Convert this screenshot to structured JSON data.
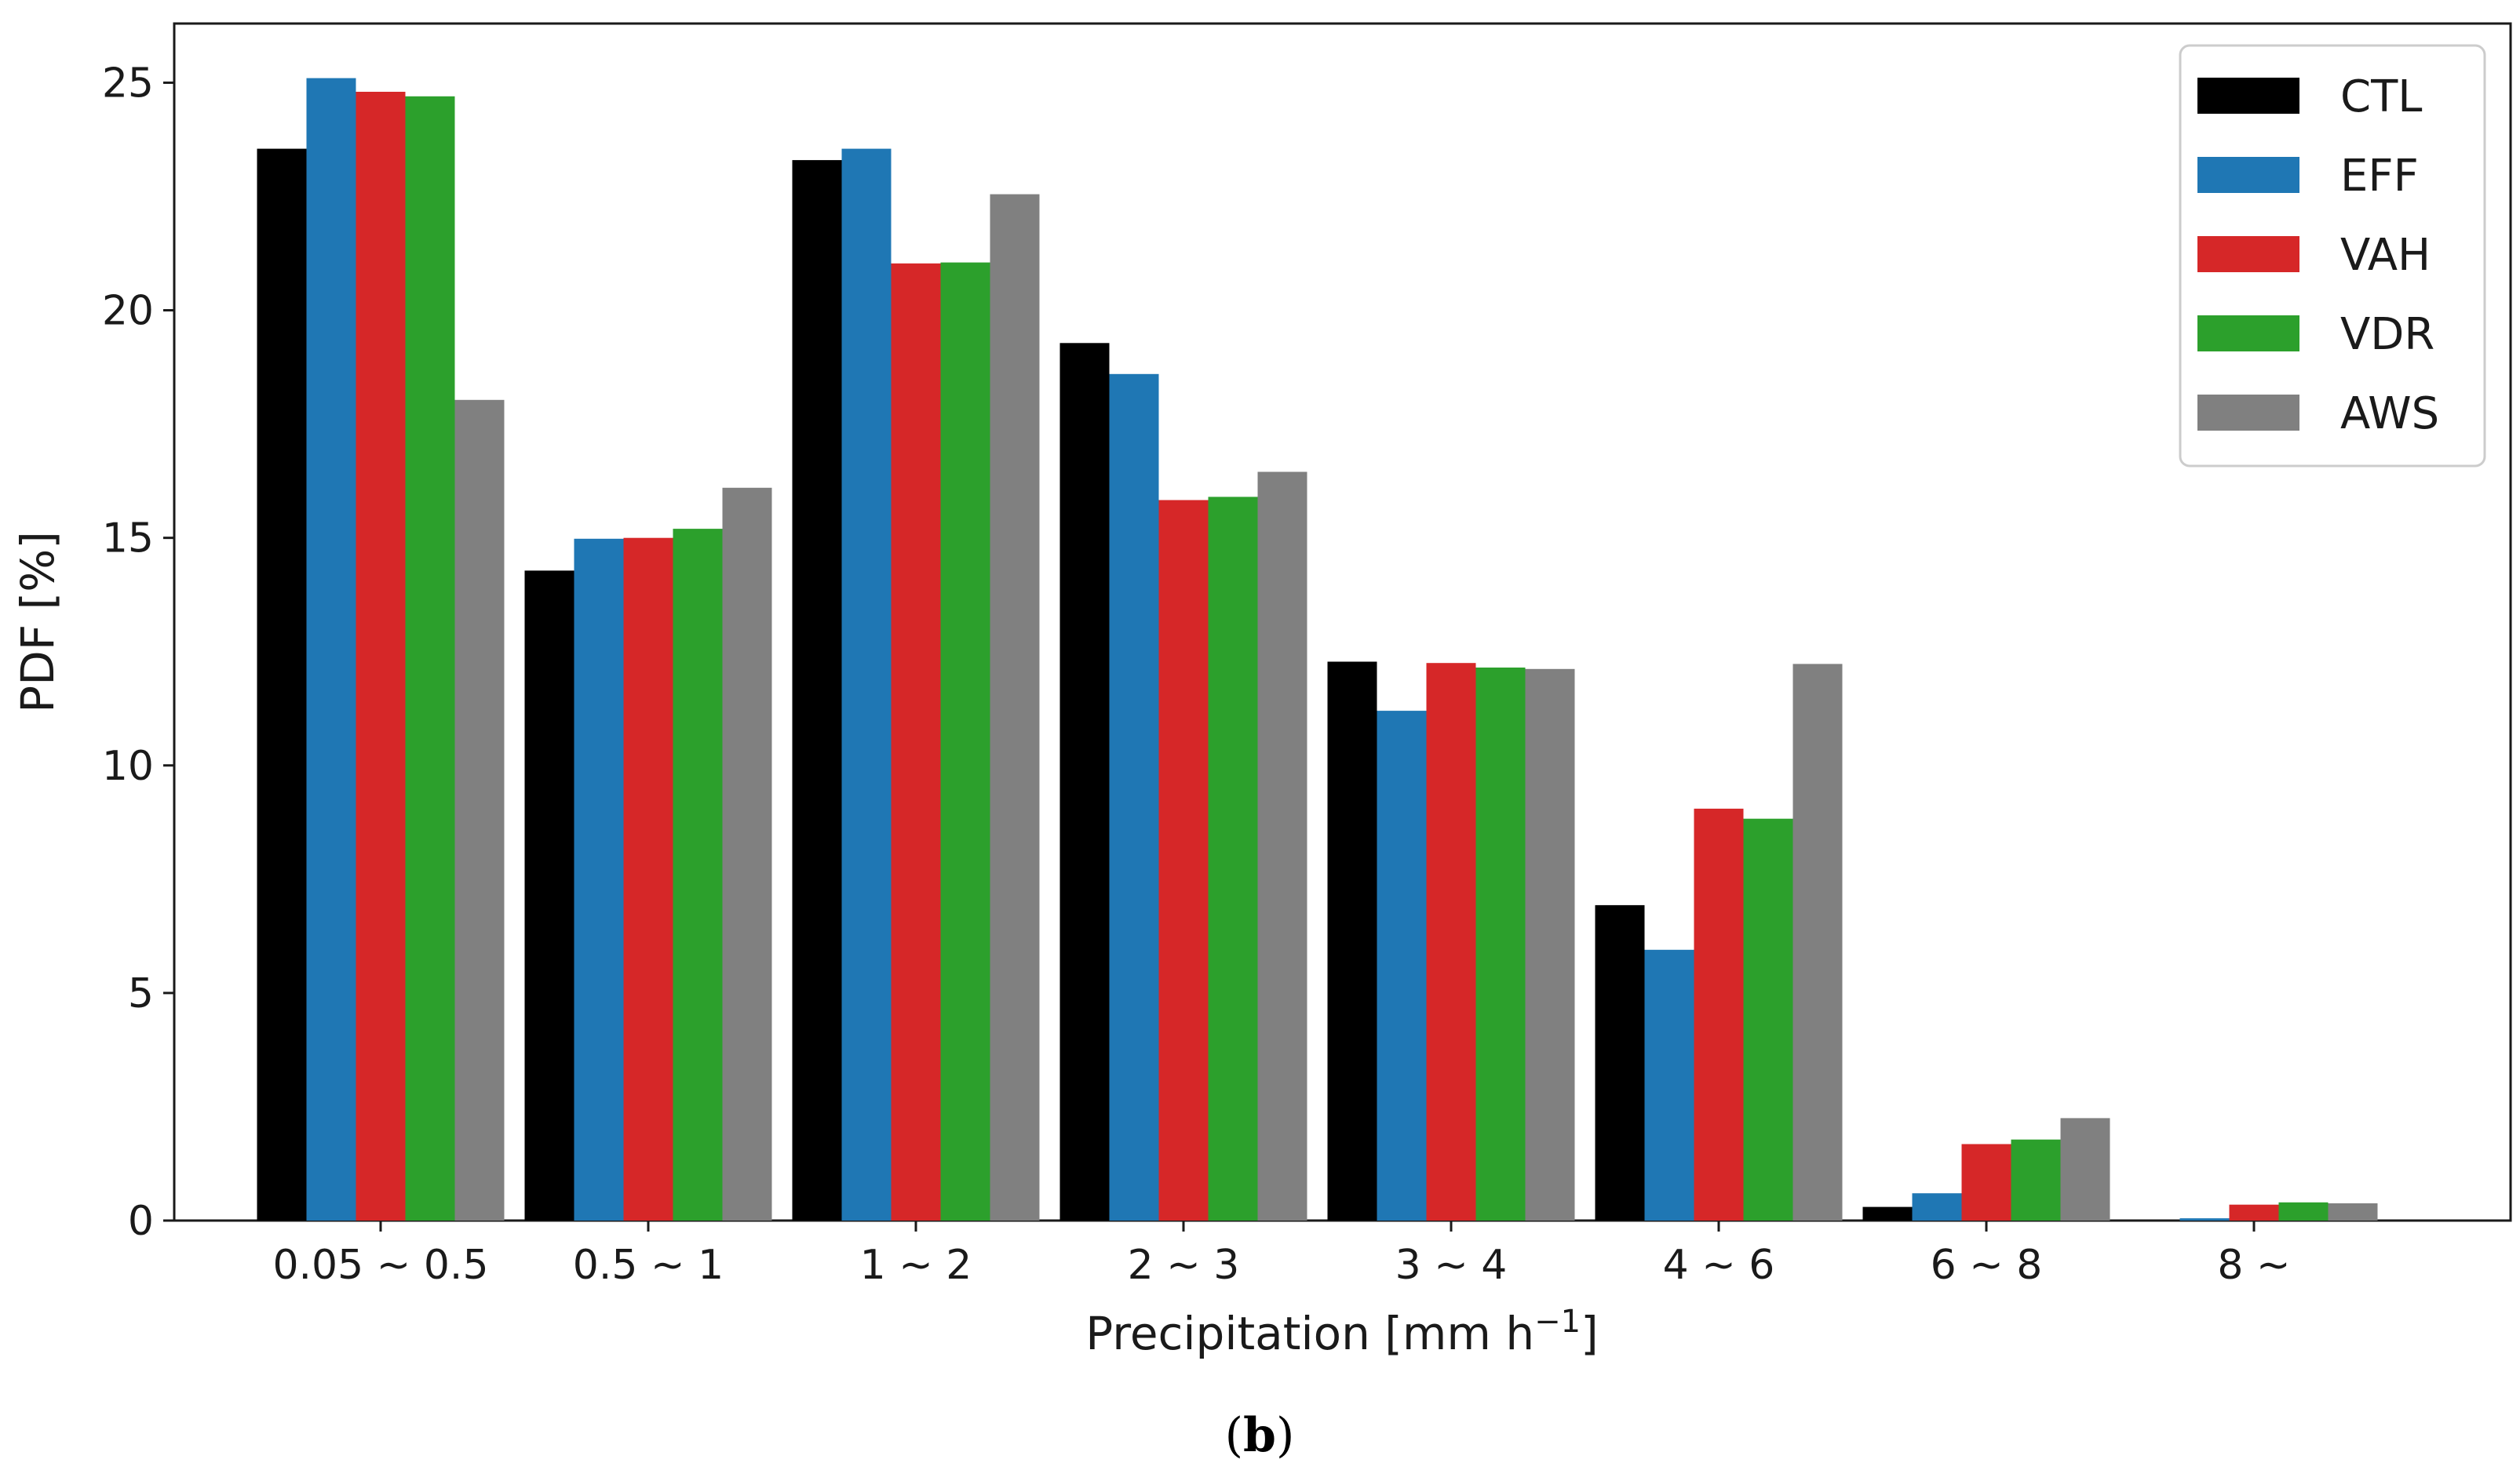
{
  "chart_data": {
    "type": "bar",
    "xlabel": "Precipitation [mm h",
    "xlabel_superscript": "−1",
    "xlabel_suffix": "]",
    "ylabel": "PDF [%]",
    "ylim": [
      0,
      26.3
    ],
    "yticks": [
      0,
      5,
      10,
      15,
      20,
      25
    ],
    "grid": false,
    "legend_position": "top-right",
    "categories": [
      "0.05 ~ 0.5",
      "0.5 ~ 1",
      "1 ~ 2",
      "2 ~ 3",
      "3 ~ 4",
      "4 ~ 6",
      "6 ~ 8",
      "8 ~"
    ],
    "series": [
      {
        "name": "CTL",
        "color": "#000000",
        "values": [
          23.55,
          14.28,
          23.3,
          19.28,
          12.28,
          6.93,
          0.3,
          0.0
        ]
      },
      {
        "name": "EFF",
        "color": "#1f77b4",
        "values": [
          25.1,
          14.98,
          23.55,
          18.6,
          11.2,
          5.95,
          0.6,
          0.05
        ]
      },
      {
        "name": "VAH",
        "color": "#d62728",
        "values": [
          24.8,
          15.0,
          21.03,
          15.83,
          12.25,
          9.05,
          1.68,
          0.35
        ]
      },
      {
        "name": "VDR",
        "color": "#2ca02c",
        "values": [
          24.7,
          15.2,
          21.05,
          15.9,
          12.15,
          8.83,
          1.78,
          0.4
        ]
      },
      {
        "name": "AWS",
        "color": "#808080",
        "values": [
          18.03,
          16.1,
          22.55,
          16.45,
          12.12,
          12.23,
          2.25,
          0.38
        ]
      }
    ]
  },
  "caption": {
    "open": "(",
    "letter": "b",
    "close": ")"
  }
}
